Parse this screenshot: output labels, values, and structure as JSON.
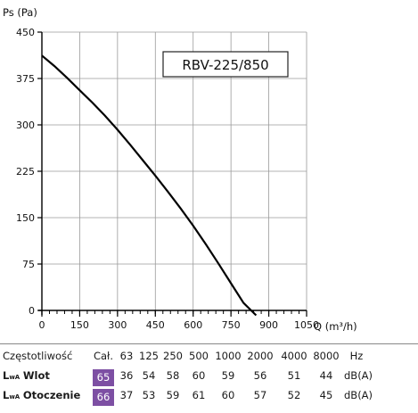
{
  "chart_data": {
    "type": "line",
    "title": "RBV-225/850",
    "xlabel": "Q (m³/h)",
    "ylabel": "Ps (Pa)",
    "xlim": [
      0,
      1050
    ],
    "ylim": [
      0,
      450
    ],
    "xticks": [
      0,
      150,
      300,
      450,
      600,
      750,
      900,
      1050
    ],
    "yticks": [
      0,
      75,
      150,
      225,
      300,
      375,
      450
    ],
    "x_minor_step": 30,
    "grid": true,
    "series": [
      {
        "x": [
          0,
          50,
          100,
          150,
          200,
          250,
          300,
          350,
          400,
          450,
          500,
          550,
          600,
          650,
          700,
          750,
          800,
          850
        ],
        "y": [
          412,
          395,
          376,
          356,
          336,
          315,
          292,
          268,
          243,
          218,
          192,
          165,
          137,
          107,
          76,
          44,
          12,
          -8
        ],
        "color": "#000000"
      }
    ]
  },
  "table": {
    "header": [
      "Częstotliwość",
      "Cał.",
      "63",
      "125",
      "250",
      "500",
      "1000",
      "2000",
      "4000",
      "8000",
      "Hz"
    ],
    "rows": [
      {
        "label_l": "L",
        "label_sub": "wA",
        "label_name": "Wlot",
        "total": "65",
        "values": [
          "36",
          "54",
          "58",
          "60",
          "59",
          "56",
          "51",
          "44"
        ],
        "unit": "dB(A)"
      },
      {
        "label_l": "L",
        "label_sub": "wA",
        "label_name": "Otoczenie",
        "total": "66",
        "values": [
          "37",
          "53",
          "59",
          "61",
          "60",
          "57",
          "52",
          "45"
        ],
        "unit": "dB(A)"
      }
    ],
    "highlight_color": "#7d4fa3"
  }
}
